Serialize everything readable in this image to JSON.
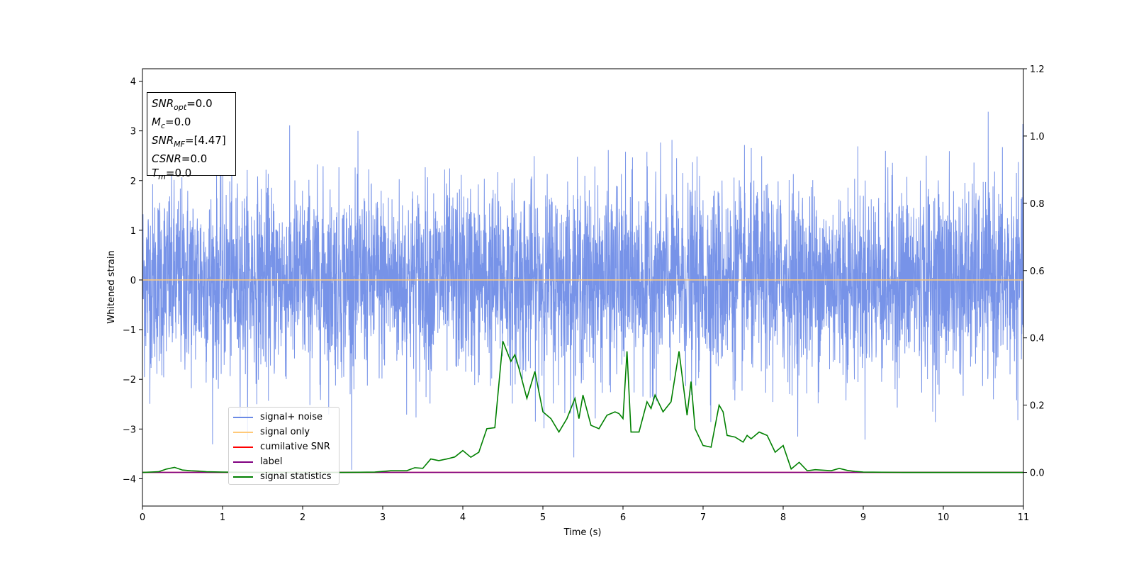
{
  "chart_data": {
    "type": "line",
    "xlabel": "Time (s)",
    "ylabel": "Whitened strain",
    "xlim": [
      0,
      11
    ],
    "ylim": [
      -4.55,
      4.25
    ],
    "y2lim": [
      -0.1,
      1.2
    ],
    "x_ticks": [
      "0",
      "1",
      "2",
      "3",
      "4",
      "5",
      "6",
      "7",
      "8",
      "9",
      "10",
      "11"
    ],
    "y_ticks": [
      "−4",
      "−3",
      "−2",
      "−1",
      "0",
      "1",
      "2",
      "3",
      "4"
    ],
    "y2_ticks": [
      "0.0",
      "0.2",
      "0.4",
      "0.6",
      "0.8",
      "1.0",
      "1.2"
    ],
    "grid": false,
    "legend_placement": "lower-left",
    "series": [
      {
        "name": "signal+ noise",
        "color": "#6B8AE6",
        "axis": "left",
        "description": "whitened noise, roughly Gaussian, amplitude between -4.2 and 3.9",
        "amplitude_range": [
          -4.2,
          3.9
        ]
      },
      {
        "name": "signal only",
        "color": "#FFC979",
        "axis": "left",
        "x": [
          0,
          11
        ],
        "y": [
          0,
          0
        ]
      },
      {
        "name": "cumilative SNR",
        "color": "#FF0000",
        "axis": "right",
        "x": [
          0,
          11
        ],
        "y": [
          0,
          0
        ]
      },
      {
        "name": "label",
        "color": "#800080",
        "axis": "right",
        "x": [
          0,
          11
        ],
        "y": [
          0,
          0
        ]
      },
      {
        "name": "signal statistics",
        "color": "#008000",
        "axis": "right",
        "x": [
          0.0,
          0.2,
          0.3,
          0.4,
          0.5,
          0.6,
          0.7,
          0.8,
          1.0,
          1.5,
          2.0,
          2.5,
          2.9,
          3.1,
          3.3,
          3.4,
          3.5,
          3.6,
          3.7,
          3.8,
          3.9,
          4.0,
          4.1,
          4.2,
          4.3,
          4.4,
          4.5,
          4.6,
          4.65,
          4.7,
          4.8,
          4.9,
          5.0,
          5.1,
          5.2,
          5.3,
          5.4,
          5.45,
          5.5,
          5.6,
          5.7,
          5.8,
          5.9,
          5.95,
          6.0,
          6.05,
          6.1,
          6.2,
          6.3,
          6.35,
          6.4,
          6.5,
          6.6,
          6.7,
          6.8,
          6.85,
          6.9,
          7.0,
          7.1,
          7.2,
          7.25,
          7.3,
          7.4,
          7.5,
          7.55,
          7.6,
          7.7,
          7.8,
          7.9,
          8.0,
          8.1,
          8.2,
          8.3,
          8.4,
          8.6,
          8.7,
          8.8,
          8.9,
          9.0,
          9.5,
          10.0,
          11.0
        ],
        "y": [
          0.0,
          0.002,
          0.01,
          0.015,
          0.007,
          0.005,
          0.004,
          0.002,
          0.001,
          0.0,
          0.0,
          0.0,
          0.001,
          0.005,
          0.005,
          0.014,
          0.012,
          0.04,
          0.035,
          0.04,
          0.046,
          0.065,
          0.045,
          0.06,
          0.13,
          0.133,
          0.39,
          0.33,
          0.35,
          0.31,
          0.22,
          0.3,
          0.18,
          0.16,
          0.12,
          0.16,
          0.22,
          0.16,
          0.23,
          0.14,
          0.13,
          0.17,
          0.18,
          0.175,
          0.16,
          0.36,
          0.12,
          0.12,
          0.21,
          0.19,
          0.23,
          0.18,
          0.21,
          0.36,
          0.17,
          0.27,
          0.13,
          0.08,
          0.075,
          0.2,
          0.18,
          0.11,
          0.105,
          0.09,
          0.11,
          0.1,
          0.12,
          0.11,
          0.06,
          0.08,
          0.01,
          0.03,
          0.005,
          0.008,
          0.005,
          0.012,
          0.006,
          0.003,
          0.001,
          0.0,
          0.0,
          0.0
        ]
      }
    ]
  },
  "info_box": {
    "snr_opt_base": "SNR",
    "snr_opt_sub": "opt",
    "snr_opt_value": "=0.0",
    "mc_base": "M",
    "mc_sub": "c",
    "mc_value": "=0.0",
    "snr_mf_base": "SNR",
    "snr_mf_sub": "MF",
    "snr_mf_value": "=[4.47]",
    "csnr_base": "CSNR",
    "csnr_value": "=0.0",
    "tm_base": "T",
    "tm_sub": "m",
    "tm_value": "=0.0"
  },
  "legend": {
    "entries": [
      {
        "label": "signal+ noise",
        "color": "#6B8AE6"
      },
      {
        "label": "signal only",
        "color": "#FFC979"
      },
      {
        "label": "cumilative SNR",
        "color": "#FF0000"
      },
      {
        "label": "label",
        "color": "#800080"
      },
      {
        "label": "signal statistics",
        "color": "#008000"
      }
    ]
  }
}
